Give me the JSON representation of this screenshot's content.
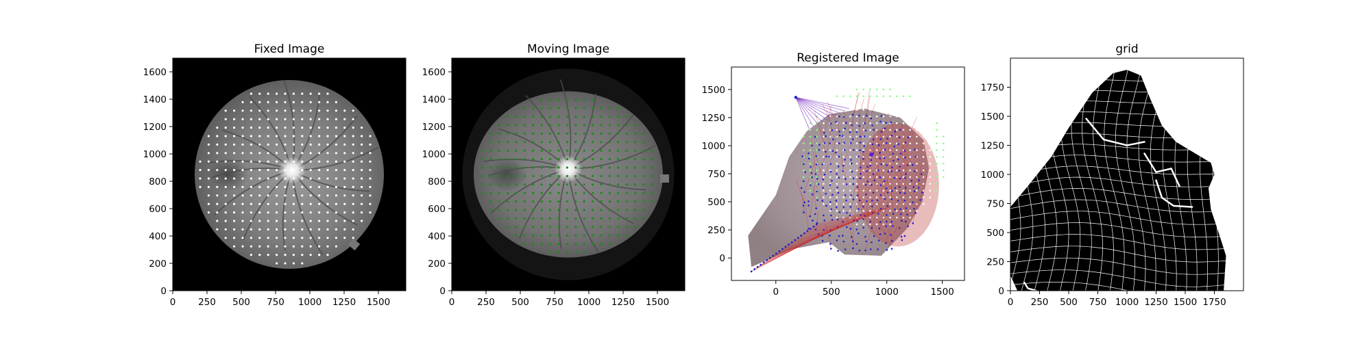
{
  "figure": {
    "background": "#ffffff"
  },
  "chart_data": [
    {
      "type": "image",
      "title": "Fixed Image",
      "xlim": [
        0,
        1700
      ],
      "ylim": [
        1700,
        0
      ],
      "xticks": [
        0,
        250,
        500,
        750,
        1000,
        1250,
        1500
      ],
      "yticks": [
        0,
        200,
        400,
        600,
        800,
        1000,
        1200,
        1400,
        1600
      ],
      "content": "fundus",
      "fundus": {
        "cx": 850,
        "cy": 850,
        "r": 690,
        "disc_x": 870,
        "disc_y": 880
      },
      "points": {
        "color": "#ffffff",
        "spacing": 62,
        "x_range": [
          200,
          1500
        ],
        "y_range": [
          200,
          1480
        ]
      }
    },
    {
      "type": "image",
      "title": "Moving Image",
      "xlim": [
        0,
        1700
      ],
      "ylim": [
        1700,
        0
      ],
      "xticks": [
        0,
        250,
        500,
        750,
        1000,
        1250,
        1500
      ],
      "yticks": [
        0,
        200,
        400,
        600,
        800,
        1000,
        1200,
        1400,
        1600
      ],
      "content": "fundus",
      "fundus": {
        "cx": 850,
        "cy": 850,
        "r": 690,
        "disc_x": 850,
        "disc_y": 890
      },
      "points": {
        "color": "#1a8c1a",
        "spacing": 62,
        "x_range": [
          160,
          1540
        ],
        "y_range": [
          280,
          1440
        ]
      }
    },
    {
      "type": "image",
      "title": "Registered Image",
      "xlim": [
        -400,
        1700
      ],
      "ylim": [
        1700,
        -200
      ],
      "xticks": [
        0,
        500,
        1000,
        1500
      ],
      "yticks": [
        0,
        250,
        500,
        750,
        1000,
        1250,
        1500
      ],
      "content": "registered",
      "points": {
        "fixed_color": "#ffffff",
        "moving_color": "#2020cc",
        "line_color": "#cc2020",
        "accent_color": "#88ff88"
      }
    },
    {
      "type": "image",
      "title": "grid",
      "xlim": [
        0,
        2000
      ],
      "ylim": [
        2000,
        0
      ],
      "xticks": [
        0,
        250,
        500,
        750,
        1000,
        1250,
        1500,
        1750
      ],
      "yticks": [
        0,
        250,
        500,
        750,
        1000,
        1250,
        1500,
        1750
      ],
      "content": "grid",
      "grid": {
        "fill": "#000000",
        "line_color": "#ffffff",
        "spacing": 100
      }
    }
  ]
}
